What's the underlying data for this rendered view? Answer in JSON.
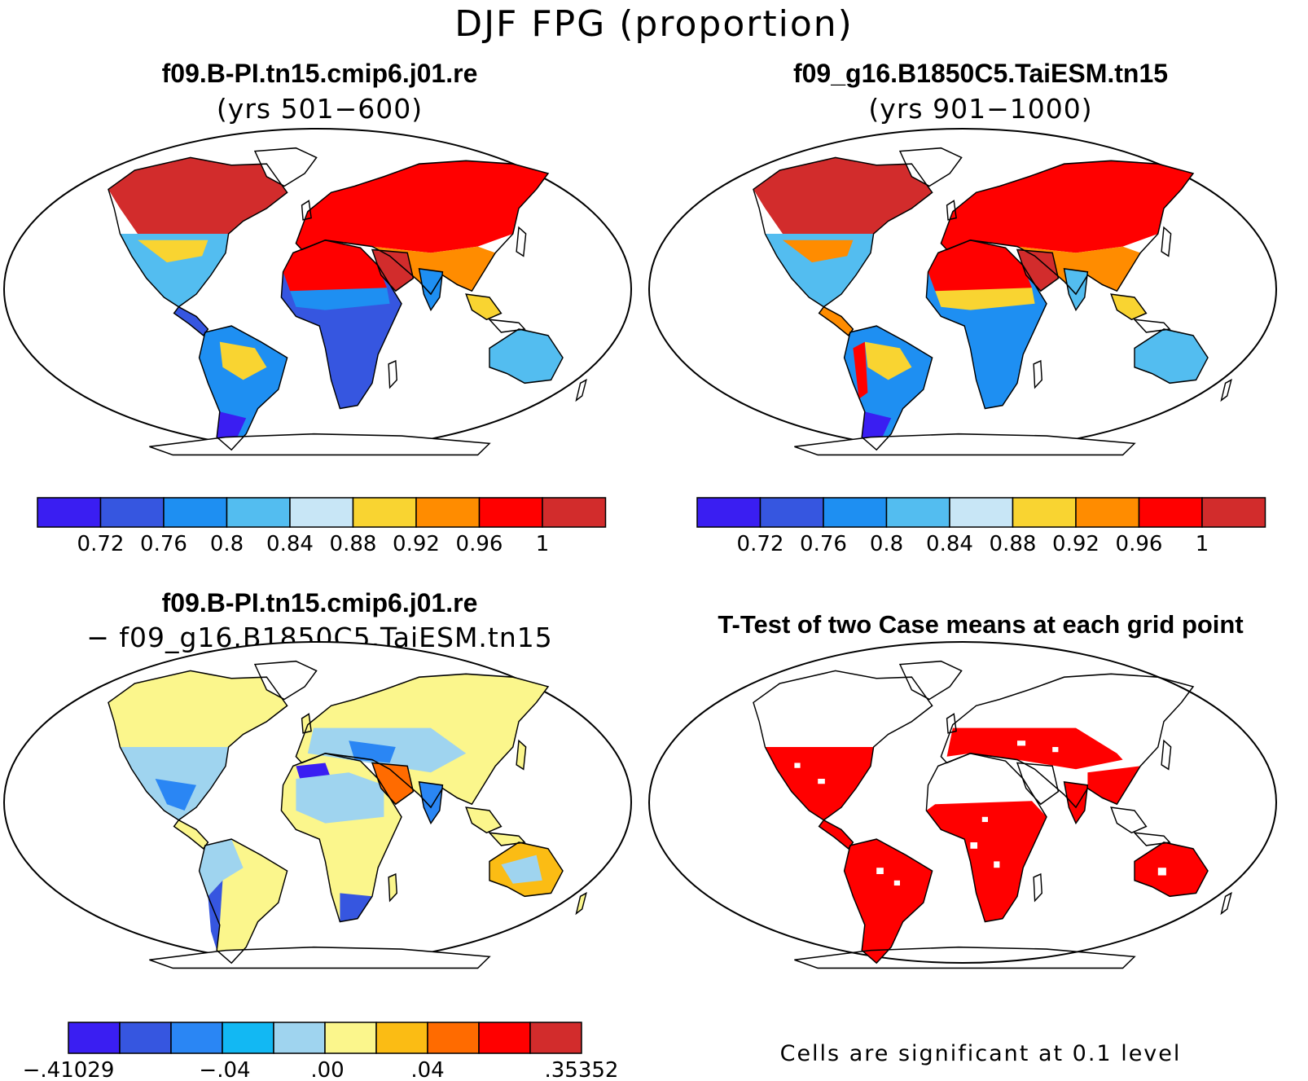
{
  "figure": {
    "title": "DJF FPG (proportion)"
  },
  "panels": [
    {
      "id": "case1",
      "title": "f09.B-PI.tn15.cmip6.j01.re",
      "subtitle": "(yrs 501−600)"
    },
    {
      "id": "case2",
      "title": "f09_g16.B1850C5.TaiESM.tn15",
      "subtitle": "(yrs 901−1000)"
    },
    {
      "id": "difference",
      "title": "f09.B-PI.tn15.cmip6.j01.re",
      "subtitle": "− f09_g16.B1850C5.TaiESM.tn15"
    },
    {
      "id": "ttest",
      "title": "T-Test of two Case means at each grid point",
      "note": "Cells are significant at 0.1 level"
    }
  ],
  "colorbars": {
    "case": {
      "colors": [
        "#3a1ef2",
        "#3656e0",
        "#1e8ff2",
        "#53bdf0",
        "#c8e6f6",
        "#f9d431",
        "#ff8c00",
        "#ff0000",
        "#d22c2c"
      ],
      "labels": [
        "0.72",
        "0.76",
        "0.8",
        "0.84",
        "0.88",
        "0.92",
        "0.96",
        "1"
      ]
    },
    "diff": {
      "colors": [
        "#3a1ef2",
        "#3656e0",
        "#2a86f4",
        "#12b8f3",
        "#9fd4ef",
        "#fbf68c",
        "#fbbc14",
        "#ff6b00",
        "#ff0000",
        "#d22c2c"
      ],
      "labels": [
        ".41029",
        ".04",
        ".00",
        ".04",
        ".35352"
      ],
      "label_signs": [
        "−",
        "−",
        "",
        "",
        ""
      ]
    }
  },
  "ttest": {
    "significant_color": "#ff0000"
  }
}
